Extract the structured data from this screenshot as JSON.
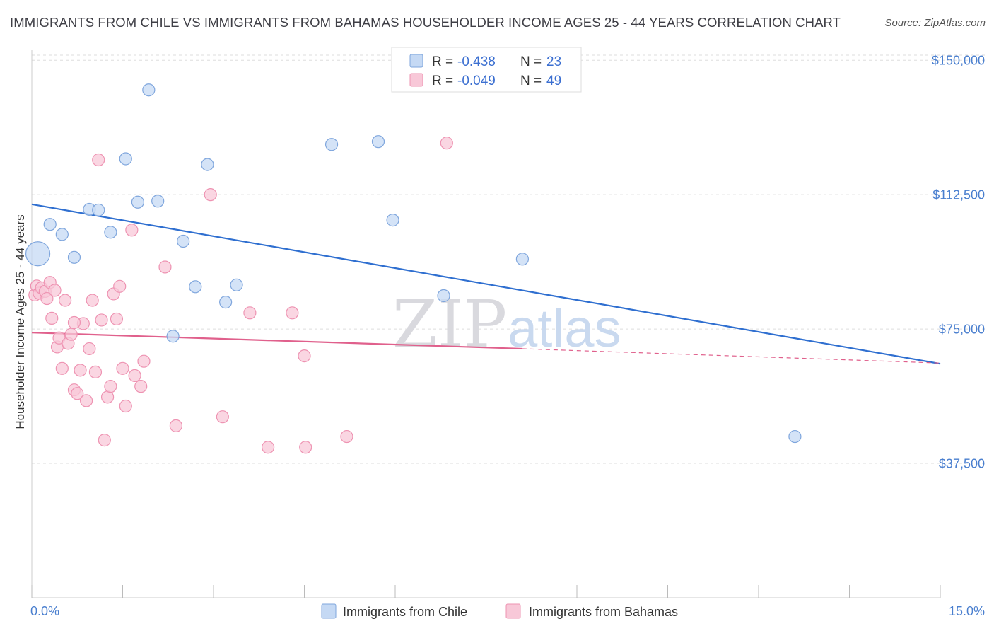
{
  "title": "IMMIGRANTS FROM CHILE VS IMMIGRANTS FROM BAHAMAS HOUSEHOLDER INCOME AGES 25 - 44 YEARS CORRELATION CHART",
  "source": "Source: ZipAtlas.com",
  "watermark": {
    "zip": "ZIP",
    "atlas": "atlas"
  },
  "colors": {
    "chile_fill": "#c5d9f4",
    "chile_stroke": "#7fa6dd",
    "chile_line": "#2f6fd0",
    "bahamas_fill": "#f8c8d8",
    "bahamas_stroke": "#ee93b2",
    "bahamas_line": "#e0608c",
    "tick_label": "#4a7fcf",
    "grid": "#dddddd"
  },
  "legend": {
    "rows": [
      {
        "r_label": "R =",
        "r_value": "-0.438",
        "n_label": "N =",
        "n_value": "23"
      },
      {
        "r_label": "R =",
        "r_value": "-0.049",
        "n_label": "N =",
        "n_value": "49"
      }
    ]
  },
  "chart_data": {
    "type": "scatter",
    "title": "IMMIGRANTS FROM CHILE VS IMMIGRANTS FROM BAHAMAS HOUSEHOLDER INCOME AGES 25 - 44 YEARS CORRELATION CHART",
    "xlabel": "",
    "ylabel": "Householder Income Ages 25 - 44 years",
    "xlim": [
      0,
      15
    ],
    "ylim": [
      0,
      153000
    ],
    "x_edge_labels": [
      "0.0%",
      "15.0%"
    ],
    "y_ticks": [
      {
        "value": 37500,
        "label": "$37,500"
      },
      {
        "value": 75000,
        "label": "$75,000"
      },
      {
        "value": 112500,
        "label": "$112,500"
      },
      {
        "value": 150000,
        "label": "$150,000"
      }
    ],
    "grid": true,
    "legend_position": "top-center",
    "series": [
      {
        "name": "Immigrants from Chile",
        "trend": {
          "x": [
            0.0,
            15.0
          ],
          "y": [
            109800,
            65300
          ]
        },
        "points": [
          {
            "x": 0.1,
            "y": 96000,
            "big": true
          },
          {
            "x": 0.3,
            "y": 104200
          },
          {
            "x": 0.5,
            "y": 101400
          },
          {
            "x": 0.7,
            "y": 95000
          },
          {
            "x": 0.95,
            "y": 108400
          },
          {
            "x": 1.1,
            "y": 108200
          },
          {
            "x": 1.3,
            "y": 102000
          },
          {
            "x": 1.55,
            "y": 122500
          },
          {
            "x": 1.75,
            "y": 110400
          },
          {
            "x": 1.93,
            "y": 141700
          },
          {
            "x": 2.08,
            "y": 110700
          },
          {
            "x": 2.5,
            "y": 99500
          },
          {
            "x": 2.7,
            "y": 86800
          },
          {
            "x": 2.9,
            "y": 120900
          },
          {
            "x": 3.2,
            "y": 82500
          },
          {
            "x": 3.38,
            "y": 87300
          },
          {
            "x": 2.33,
            "y": 73000
          },
          {
            "x": 4.95,
            "y": 126500
          },
          {
            "x": 5.72,
            "y": 127300
          },
          {
            "x": 5.96,
            "y": 105400
          },
          {
            "x": 6.8,
            "y": 84300
          },
          {
            "x": 8.1,
            "y": 94500
          },
          {
            "x": 12.6,
            "y": 45000
          }
        ]
      },
      {
        "name": "Immigrants from Bahamas",
        "trend": {
          "x": [
            0.0,
            8.1
          ],
          "y": [
            74000,
            69500
          ]
        },
        "trend_dashed": {
          "x": [
            8.1,
            15.0
          ],
          "y": [
            69500,
            65500
          ]
        },
        "points": [
          {
            "x": 0.05,
            "y": 84500
          },
          {
            "x": 0.08,
            "y": 87000
          },
          {
            "x": 0.12,
            "y": 85000
          },
          {
            "x": 0.16,
            "y": 86500
          },
          {
            "x": 0.22,
            "y": 85500
          },
          {
            "x": 0.25,
            "y": 83500
          },
          {
            "x": 0.3,
            "y": 88000
          },
          {
            "x": 0.33,
            "y": 78000
          },
          {
            "x": 0.38,
            "y": 85800
          },
          {
            "x": 0.42,
            "y": 70000
          },
          {
            "x": 0.45,
            "y": 72500
          },
          {
            "x": 0.5,
            "y": 64000
          },
          {
            "x": 0.55,
            "y": 83000
          },
          {
            "x": 0.6,
            "y": 71000
          },
          {
            "x": 0.65,
            "y": 73500
          },
          {
            "x": 0.7,
            "y": 58000
          },
          {
            "x": 0.75,
            "y": 57000
          },
          {
            "x": 0.8,
            "y": 63500
          },
          {
            "x": 0.85,
            "y": 76500
          },
          {
            "x": 0.9,
            "y": 55000
          },
          {
            "x": 0.95,
            "y": 69500
          },
          {
            "x": 1.0,
            "y": 83000
          },
          {
            "x": 1.05,
            "y": 63000
          },
          {
            "x": 1.1,
            "y": 122200
          },
          {
            "x": 1.15,
            "y": 77500
          },
          {
            "x": 1.2,
            "y": 44000
          },
          {
            "x": 1.25,
            "y": 56000
          },
          {
            "x": 1.3,
            "y": 59000
          },
          {
            "x": 1.35,
            "y": 84800
          },
          {
            "x": 1.4,
            "y": 77800
          },
          {
            "x": 1.45,
            "y": 86900
          },
          {
            "x": 1.5,
            "y": 64000
          },
          {
            "x": 1.55,
            "y": 53500
          },
          {
            "x": 1.65,
            "y": 102600
          },
          {
            "x": 1.7,
            "y": 62000
          },
          {
            "x": 1.8,
            "y": 59000
          },
          {
            "x": 1.85,
            "y": 66000
          },
          {
            "x": 2.2,
            "y": 92300
          },
          {
            "x": 2.38,
            "y": 48000
          },
          {
            "x": 2.95,
            "y": 112500
          },
          {
            "x": 3.15,
            "y": 50500
          },
          {
            "x": 3.6,
            "y": 79500
          },
          {
            "x": 3.9,
            "y": 42000
          },
          {
            "x": 4.3,
            "y": 79500
          },
          {
            "x": 4.5,
            "y": 67500
          },
          {
            "x": 4.52,
            "y": 42000
          },
          {
            "x": 5.2,
            "y": 45000
          },
          {
            "x": 6.85,
            "y": 126900
          },
          {
            "x": 0.7,
            "y": 76800
          }
        ]
      }
    ]
  }
}
